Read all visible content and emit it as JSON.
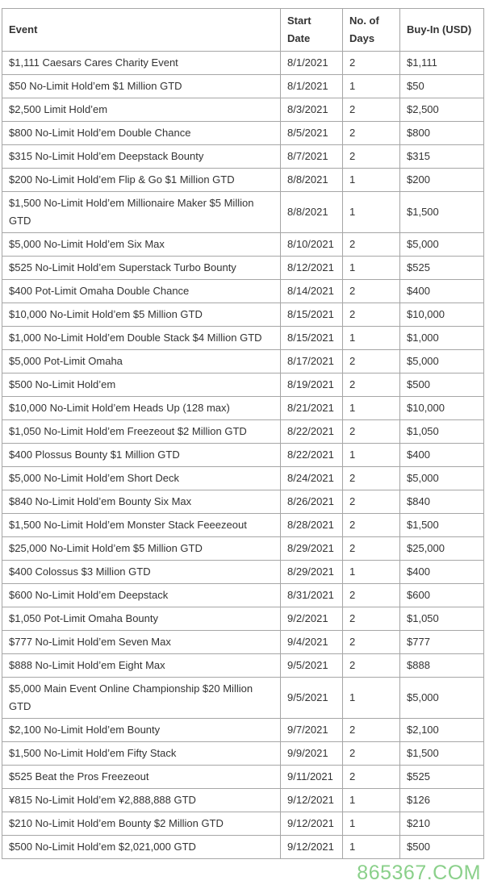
{
  "table": {
    "columns": [
      "Event",
      "Start Date",
      "No. of Days",
      "Buy-In (USD)"
    ],
    "rows": [
      {
        "event": "$1,111 Caesars Cares Charity Event",
        "start_date": "8/1/2021",
        "days": "2",
        "buy_in": "$1,111"
      },
      {
        "event": "$50 No-Limit Hold’em $1 Million GTD",
        "start_date": "8/1/2021",
        "days": "1",
        "buy_in": "$50"
      },
      {
        "event": "$2,500 Limit Hold’em",
        "start_date": "8/3/2021",
        "days": "2",
        "buy_in": "$2,500"
      },
      {
        "event": "$800 No-Limit Hold’em Double Chance",
        "start_date": "8/5/2021",
        "days": "2",
        "buy_in": "$800"
      },
      {
        "event": "$315 No-Limit Hold’em Deepstack Bounty",
        "start_date": "8/7/2021",
        "days": "2",
        "buy_in": "$315"
      },
      {
        "event": "$200 No-Limit Hold’em Flip & Go $1 Million GTD",
        "start_date": "8/8/2021",
        "days": "1",
        "buy_in": "$200"
      },
      {
        "event": "$1,500 No-Limit Hold’em Millionaire Maker $5 Million GTD",
        "start_date": "8/8/2021",
        "days": "1",
        "buy_in": "$1,500"
      },
      {
        "event": "$5,000 No-Limit Hold’em Six Max",
        "start_date": "8/10/2021",
        "days": "2",
        "buy_in": "$5,000"
      },
      {
        "event": "$525 No-Limit Hold’em Superstack Turbo Bounty",
        "start_date": "8/12/2021",
        "days": "1",
        "buy_in": "$525"
      },
      {
        "event": "$400 Pot-Limit Omaha Double Chance",
        "start_date": "8/14/2021",
        "days": "2",
        "buy_in": "$400"
      },
      {
        "event": "$10,000 No-Limit Hold’em $5 Million GTD",
        "start_date": "8/15/2021",
        "days": "2",
        "buy_in": "$10,000"
      },
      {
        "event": "$1,000 No-Limit Hold’em Double Stack $4 Million GTD",
        "start_date": "8/15/2021",
        "days": "1",
        "buy_in": "$1,000"
      },
      {
        "event": "$5,000 Pot-Limit Omaha",
        "start_date": "8/17/2021",
        "days": "2",
        "buy_in": "$5,000"
      },
      {
        "event": "$500 No-Limit Hold’em",
        "start_date": "8/19/2021",
        "days": "2",
        "buy_in": "$500"
      },
      {
        "event": "$10,000 No-Limit Hold’em Heads Up (128 max)",
        "start_date": "8/21/2021",
        "days": "1",
        "buy_in": "$10,000"
      },
      {
        "event": "$1,050 No-Limit Hold’em Freezeout $2 Million GTD",
        "start_date": "8/22/2021",
        "days": "2",
        "buy_in": "$1,050"
      },
      {
        "event": "$400 Plossus Bounty $1 Million GTD",
        "start_date": "8/22/2021",
        "days": "1",
        "buy_in": "$400"
      },
      {
        "event": "$5,000 No-Limit Hold’em Short Deck",
        "start_date": "8/24/2021",
        "days": "2",
        "buy_in": "$5,000"
      },
      {
        "event": "$840 No-Limit Hold’em Bounty Six Max",
        "start_date": "8/26/2021",
        "days": "2",
        "buy_in": "$840"
      },
      {
        "event": "$1,500 No-Limit Hold’em Monster Stack Feeezeout",
        "start_date": "8/28/2021",
        "days": "2",
        "buy_in": "$1,500"
      },
      {
        "event": "$25,000 No-Limit Hold’em $5 Million GTD",
        "start_date": "8/29/2021",
        "days": "2",
        "buy_in": "$25,000"
      },
      {
        "event": "$400 Colossus $3 Million GTD",
        "start_date": "8/29/2021",
        "days": "1",
        "buy_in": "$400"
      },
      {
        "event": "$600 No-Limit Hold’em Deepstack",
        "start_date": "8/31/2021",
        "days": "2",
        "buy_in": "$600"
      },
      {
        "event": "$1,050 Pot-Limit Omaha Bounty",
        "start_date": "9/2/2021",
        "days": "2",
        "buy_in": "$1,050"
      },
      {
        "event": "$777 No-Limit Hold’em Seven Max",
        "start_date": "9/4/2021",
        "days": "2",
        "buy_in": "$777"
      },
      {
        "event": "$888 No-Limit Hold’em Eight Max",
        "start_date": "9/5/2021",
        "days": "2",
        "buy_in": "$888"
      },
      {
        "event": "$5,000 Main Event Online Championship $20 Million GTD",
        "start_date": "9/5/2021",
        "days": "1",
        "buy_in": "$5,000"
      },
      {
        "event": "$2,100 No-Limit Hold’em Bounty",
        "start_date": "9/7/2021",
        "days": "2",
        "buy_in": "$2,100"
      },
      {
        "event": "$1,500 No-Limit Hold’em Fifty Stack",
        "start_date": "9/9/2021",
        "days": "2",
        "buy_in": "$1,500"
      },
      {
        "event": "$525 Beat the Pros Freezeout",
        "start_date": "9/11/2021",
        "days": "2",
        "buy_in": "$525"
      },
      {
        "event": "¥815 No-Limit Hold’em ¥2,888,888 GTD",
        "start_date": "9/12/2021",
        "days": "1",
        "buy_in": "$126"
      },
      {
        "event": "$210 No-Limit Hold’em Bounty $2 Million GTD",
        "start_date": "9/12/2021",
        "days": "1",
        "buy_in": "$210"
      },
      {
        "event": "$500 No-Limit Hold’em $2,021,000 GTD",
        "start_date": "9/12/2021",
        "days": "1",
        "buy_in": "$500"
      }
    ]
  },
  "watermark": {
    "text": "865367.COM",
    "color": "#76c876"
  },
  "colors": {
    "border": "#a6a6a6",
    "text": "#333333",
    "background": "#ffffff"
  }
}
